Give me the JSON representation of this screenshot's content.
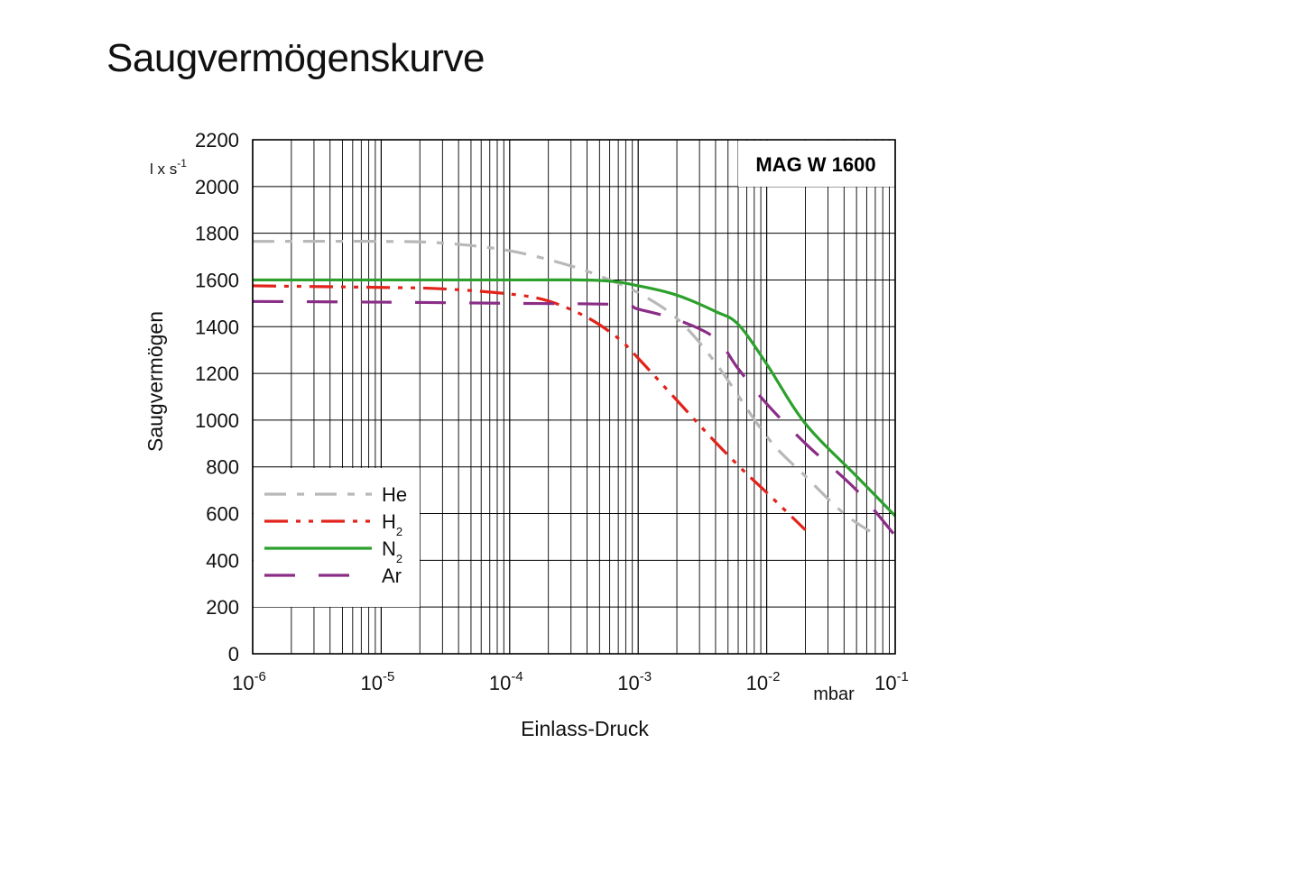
{
  "page": {
    "title": "Saugvermögenskurve"
  },
  "chart_data": {
    "type": "line",
    "model_label": "MAG W 1600",
    "xlabel": "Einlass-Druck",
    "x_unit": "mbar",
    "ylabel": "Saugvermögen",
    "y_unit": {
      "base": "l x s",
      "exp": "-1"
    },
    "x_scale": "log",
    "xlim": [
      1e-06,
      0.1
    ],
    "ylim": [
      0,
      2200
    ],
    "grid": true,
    "legend_position": "bottom-left",
    "x_ticks": [
      {
        "value": 1e-06,
        "base": "10",
        "exp": "-6"
      },
      {
        "value": 1e-05,
        "base": "10",
        "exp": "-5"
      },
      {
        "value": 0.0001,
        "base": "10",
        "exp": "-4"
      },
      {
        "value": 0.001,
        "base": "10",
        "exp": "-3"
      },
      {
        "value": 0.01,
        "base": "10",
        "exp": "-2"
      },
      {
        "value": 0.1,
        "base": "10",
        "exp": "-1"
      }
    ],
    "y_ticks": [
      0,
      200,
      400,
      600,
      800,
      1000,
      1200,
      1400,
      1600,
      1800,
      2000,
      2200
    ],
    "series": [
      {
        "name": "He",
        "sub": "",
        "color": "#b8b8b8",
        "dash": "24,12,8,12",
        "points": [
          [
            1e-06,
            1765
          ],
          [
            1e-05,
            1765
          ],
          [
            3e-05,
            1758
          ],
          [
            0.0001,
            1725
          ],
          [
            0.0003,
            1660
          ],
          [
            0.0006,
            1600
          ],
          [
            0.001,
            1545
          ],
          [
            0.002,
            1435
          ],
          [
            0.004,
            1245
          ],
          [
            0.01,
            930
          ],
          [
            0.02,
            760
          ],
          [
            0.04,
            600
          ],
          [
            0.07,
            510
          ]
        ]
      },
      {
        "name": "H",
        "sub": "2",
        "color": "#e2231a",
        "dash": "26,9,5,9,5,9",
        "points": [
          [
            1e-06,
            1575
          ],
          [
            1e-05,
            1568
          ],
          [
            3e-05,
            1562
          ],
          [
            0.0001,
            1540
          ],
          [
            0.0002,
            1510
          ],
          [
            0.0004,
            1440
          ],
          [
            0.0007,
            1350
          ],
          [
            0.001,
            1265
          ],
          [
            0.002,
            1085
          ],
          [
            0.004,
            905
          ],
          [
            0.007,
            770
          ],
          [
            0.01,
            690
          ],
          [
            0.02,
            530
          ]
        ]
      },
      {
        "name": "N",
        "sub": "2",
        "color": "#2ca02c",
        "dash": "",
        "points": [
          [
            1e-06,
            1600
          ],
          [
            0.0001,
            1600
          ],
          [
            0.0005,
            1598
          ],
          [
            0.001,
            1575
          ],
          [
            0.002,
            1535
          ],
          [
            0.004,
            1465
          ],
          [
            0.006,
            1410
          ],
          [
            0.01,
            1240
          ],
          [
            0.02,
            985
          ],
          [
            0.05,
            760
          ],
          [
            0.1,
            590
          ]
        ]
      },
      {
        "name": "Ar",
        "sub": "",
        "color": "#8a2d86",
        "dash": "34,26",
        "points": [
          [
            1e-06,
            1508
          ],
          [
            1e-05,
            1505
          ],
          [
            0.0001,
            1500
          ],
          [
            0.0007,
            1495
          ],
          [
            0.001,
            1475
          ],
          [
            0.002,
            1430
          ],
          [
            0.004,
            1350
          ],
          [
            0.006,
            1220
          ],
          [
            0.01,
            1070
          ],
          [
            0.02,
            900
          ],
          [
            0.05,
            700
          ],
          [
            0.1,
            505
          ]
        ]
      }
    ]
  }
}
